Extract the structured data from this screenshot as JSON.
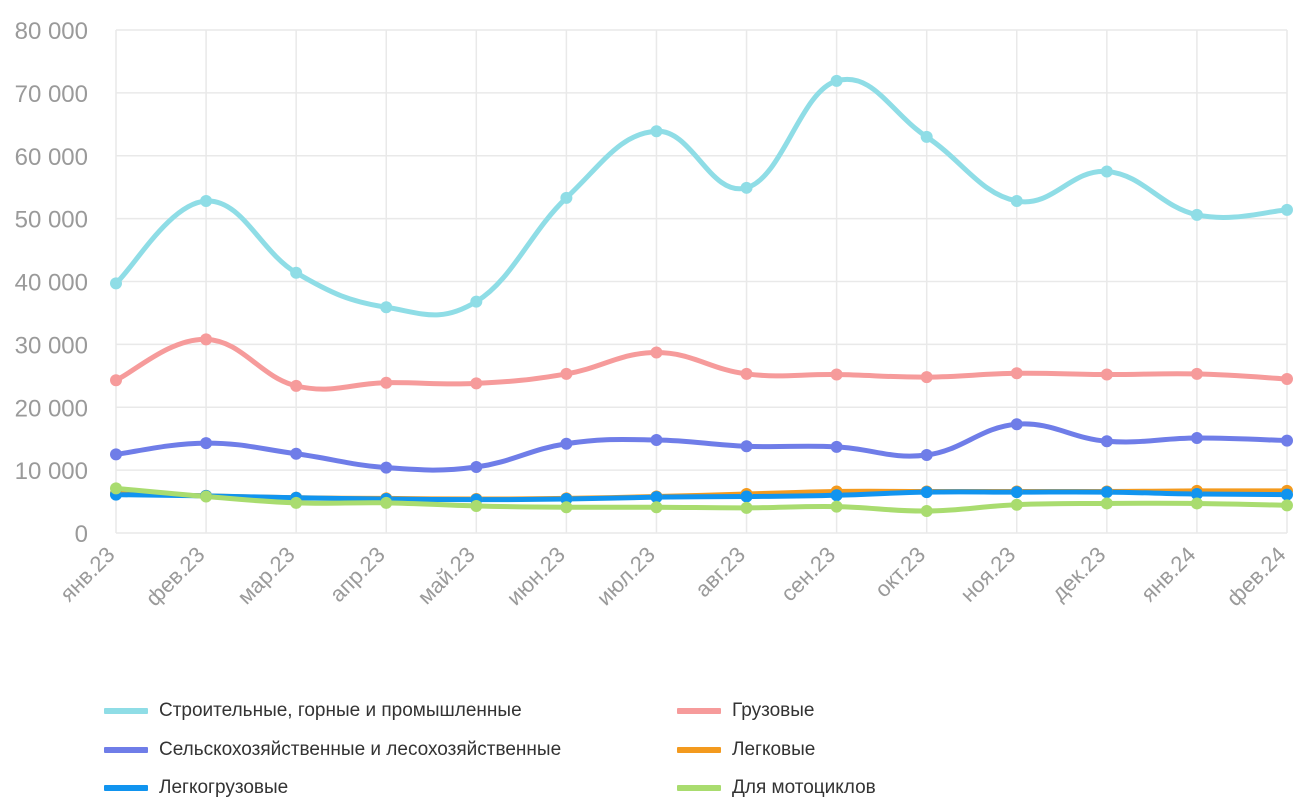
{
  "chart_data": {
    "type": "line",
    "categories": [
      "янв.23",
      "фев.23",
      "мар.23",
      "апр.23",
      "май.23",
      "июн.23",
      "июл.23",
      "авг.23",
      "сен.23",
      "окт.23",
      "ноя.23",
      "дек.23",
      "янв.24",
      "фев.24"
    ],
    "ylim": [
      0,
      80000
    ],
    "yticks": [
      "0",
      "10 000",
      "20 000",
      "30 000",
      "40 000",
      "50 000",
      "60 000",
      "70 000",
      "80 000"
    ],
    "grid": true,
    "legend_position": "bottom",
    "series": [
      {
        "name": "Строительные, горные и промышленные",
        "color": "#8fdde6",
        "values": [
          39700,
          52800,
          41400,
          35900,
          36800,
          53300,
          63900,
          54900,
          71900,
          63000,
          52800,
          57500,
          50600,
          51400
        ]
      },
      {
        "name": "Грузовые",
        "color": "#f69b9b",
        "values": [
          24300,
          30800,
          23400,
          23900,
          23800,
          25300,
          28700,
          25300,
          25200,
          24800,
          25400,
          25200,
          25300,
          24500
        ]
      },
      {
        "name": "Сельскохозяйственные и лесохозяйственные",
        "color": "#6f7de8",
        "values": [
          12500,
          14300,
          12600,
          10400,
          10500,
          14200,
          14800,
          13800,
          13700,
          12400,
          17300,
          14600,
          15100,
          14700
        ]
      },
      {
        "name": "Легковые",
        "color": "#f39a1e",
        "values": [
          6300,
          5900,
          5600,
          5500,
          5400,
          5500,
          5800,
          6200,
          6600,
          6600,
          6600,
          6600,
          6700,
          6700
        ]
      },
      {
        "name": "Легкогрузовые",
        "color": "#1194ef",
        "values": [
          6100,
          5900,
          5600,
          5400,
          5300,
          5400,
          5700,
          5800,
          6000,
          6500,
          6500,
          6500,
          6200,
          6100
        ]
      },
      {
        "name": "Для мотоциклов",
        "color": "#a9dc6f",
        "values": [
          7100,
          5800,
          4800,
          4800,
          4300,
          4100,
          4100,
          4000,
          4200,
          3500,
          4500,
          4700,
          4700,
          4400
        ]
      }
    ]
  }
}
